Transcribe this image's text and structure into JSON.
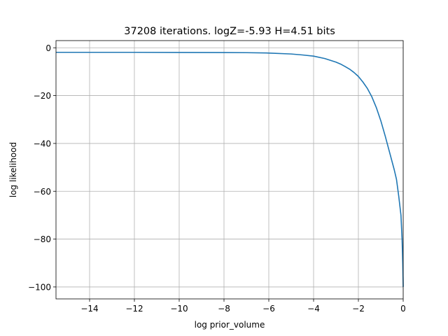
{
  "chart_data": {
    "type": "line",
    "title": "37208 iterations. logZ=-5.93 H=4.51 bits",
    "xlabel": "log prior_volume",
    "ylabel": "log likelihood",
    "xlim": [
      -15.5,
      0
    ],
    "ylim": [
      -105,
      3
    ],
    "grid": true,
    "x_ticks": [
      -14,
      -12,
      -10,
      -8,
      -6,
      -4,
      -2,
      0
    ],
    "x_tick_labels": [
      "−14",
      "−12",
      "−10",
      "−8",
      "−6",
      "−4",
      "−2",
      "0"
    ],
    "y_ticks": [
      0,
      -20,
      -40,
      -60,
      -80,
      -100
    ],
    "y_tick_labels": [
      "0",
      "−20",
      "−40",
      "−60",
      "−80",
      "−100"
    ],
    "series": [
      {
        "color": "#1f77b4",
        "x": [
          -15.5,
          -14,
          -12,
          -10,
          -8,
          -7,
          -6,
          -5,
          -4.5,
          -4,
          -3.5,
          -3,
          -2.8,
          -2.6,
          -2.4,
          -2.2,
          -2.0,
          -1.8,
          -1.6,
          -1.4,
          -1.2,
          -1.0,
          -0.8,
          -0.6,
          -0.4,
          -0.3,
          -0.2,
          -0.1,
          -0.05,
          -0.02,
          0
        ],
        "y": [
          -1.9,
          -1.9,
          -1.9,
          -1.95,
          -2.0,
          -2.05,
          -2.2,
          -2.6,
          -3.0,
          -3.5,
          -4.5,
          -6.0,
          -6.8,
          -7.8,
          -8.9,
          -10.3,
          -12.0,
          -14.3,
          -17.0,
          -20.5,
          -25.0,
          -30.5,
          -37.0,
          -44.0,
          -51.0,
          -55.0,
          -62.0,
          -70.0,
          -80.0,
          -90.0,
          -100.0
        ]
      }
    ]
  }
}
